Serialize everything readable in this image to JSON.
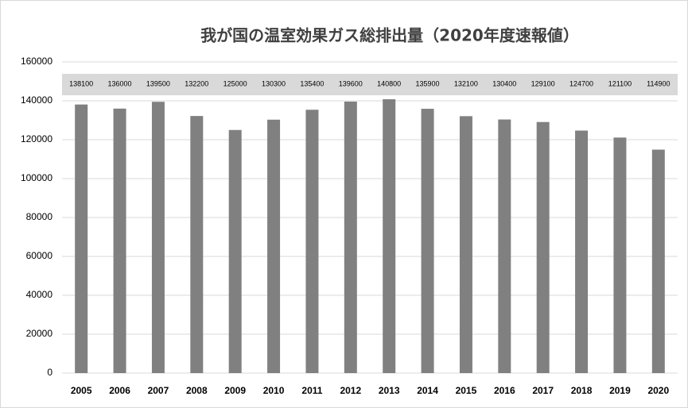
{
  "chart_data": {
    "type": "bar",
    "title": "我が国の温室効果ガス総排出量（2020年度速報値）",
    "categories": [
      "2005",
      "2006",
      "2007",
      "2008",
      "2009",
      "2010",
      "2011",
      "2012",
      "2013",
      "2014",
      "2015",
      "2016",
      "2017",
      "2018",
      "2019",
      "2020"
    ],
    "values": [
      138100,
      136000,
      139500,
      132200,
      125000,
      130300,
      135400,
      139600,
      140800,
      135900,
      132100,
      130400,
      129100,
      124700,
      121100,
      114900
    ],
    "color": "#808080",
    "ylim": [
      0,
      160000
    ],
    "yticks": [
      0,
      20000,
      40000,
      60000,
      80000,
      100000,
      120000,
      140000,
      160000
    ],
    "grid": true
  }
}
